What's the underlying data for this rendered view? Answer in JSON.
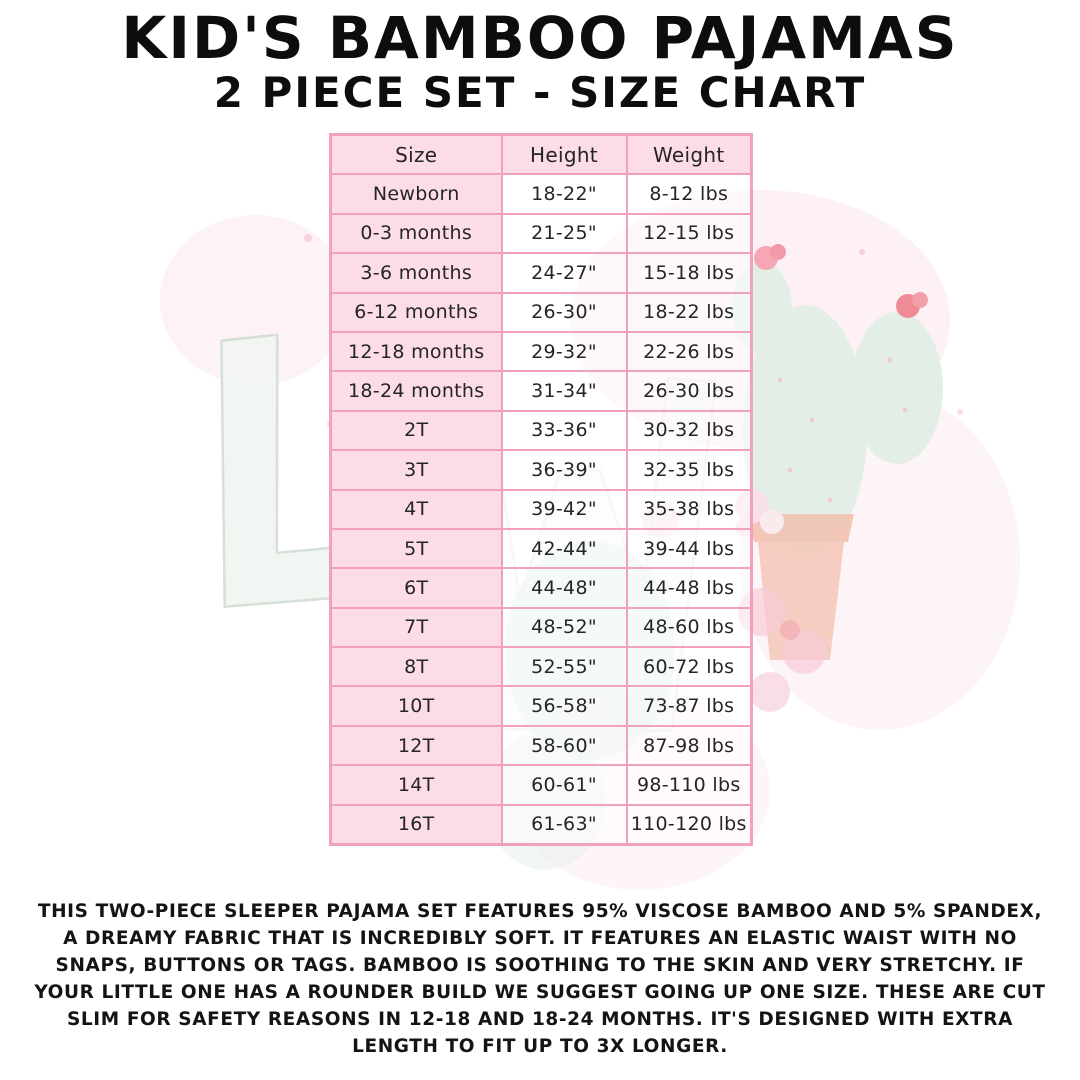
{
  "title": "KID'S BAMBOO PAJAMAS",
  "subtitle": "2 PIECE SET - SIZE CHART",
  "chart_data": {
    "type": "table",
    "columns": [
      "Size",
      "Height",
      "Weight"
    ],
    "rows": [
      [
        "Newborn",
        "18-22\"",
        "8-12 lbs"
      ],
      [
        "0-3 months",
        "21-25\"",
        "12-15 lbs"
      ],
      [
        "3-6 months",
        "24-27\"",
        "15-18 lbs"
      ],
      [
        "6-12 months",
        "26-30\"",
        "18-22 lbs"
      ],
      [
        "12-18 months",
        "29-32\"",
        "22-26 lbs"
      ],
      [
        "18-24 months",
        "31-34\"",
        "26-30 lbs"
      ],
      [
        "2T",
        "33-36\"",
        "30-32 lbs"
      ],
      [
        "3T",
        "36-39\"",
        "32-35 lbs"
      ],
      [
        "4T",
        "39-42\"",
        "35-38 lbs"
      ],
      [
        "5T",
        "42-44\"",
        "39-44 lbs"
      ],
      [
        "6T",
        "44-48\"",
        "44-48 lbs"
      ],
      [
        "7T",
        "48-52\"",
        "48-60 lbs"
      ],
      [
        "8T",
        "52-55\"",
        "60-72 lbs"
      ],
      [
        "10T",
        "56-58\"",
        "73-87 lbs"
      ],
      [
        "12T",
        "58-60\"",
        "87-98 lbs"
      ],
      [
        "14T",
        "60-61\"",
        "98-110 lbs"
      ],
      [
        "16T",
        "61-63\"",
        "110-120 lbs"
      ]
    ],
    "title": "KID'S BAMBOO PAJAMAS 2 PIECE SET - SIZE CHART",
    "legend_position": "none",
    "grid": true
  },
  "description": "THIS TWO-PIECE SLEEPER PAJAMA SET FEATURES 95% VISCOSE BAMBOO AND 5% SPANDEX, A DREAMY FABRIC THAT IS INCREDIBLY SOFT. IT FEATURES AN ELASTIC WAIST WITH NO SNAPS, BUTTONS OR TAGS. BAMBOO IS SOOTHING TO THE SKIN AND VERY STRETCHY. IF YOUR LITTLE ONE HAS A ROUNDER BUILD WE SUGGEST GOING UP ONE SIZE. THESE ARE CUT SLIM FOR SAFETY REASONS IN 12-18 AND 18-24 MONTHS. IT'S DESIGNED WITH EXTRA LENGTH TO FIT UP TO 3X LONGER.",
  "watermark": {
    "letter": "L",
    "elements": [
      "pale-letter-outlines",
      "cactus",
      "flower-pot",
      "pink-wash",
      "pastel-flowers"
    ]
  },
  "colors": {
    "cell_pink": "#fbdce8",
    "border_pink": "#f2a1bc",
    "text": "#141414",
    "watermark_green": "#e3efe6",
    "watermark_pot": "#f5c7b7",
    "watermark_flower_pink": "#f6a6b4"
  }
}
